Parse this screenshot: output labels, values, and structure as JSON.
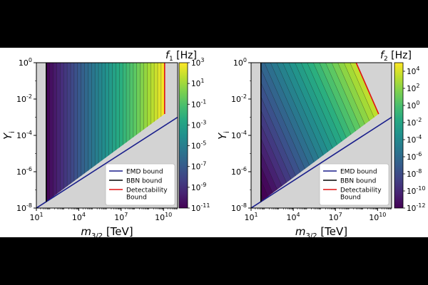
{
  "chart_data": [
    {
      "type": "heatmap",
      "title": "f_1 [Hz]",
      "title_main": "f",
      "title_sub": "1",
      "title_unit": " [Hz]",
      "x_scale": "log",
      "y_scale": "log",
      "xlim": [
        10,
        100000000000.0
      ],
      "ylim": [
        1e-08,
        1
      ],
      "xlabel_main": "m",
      "xlabel_sub": "3/2",
      "xlabel_unit": " [TeV]",
      "ylabel_main": "Y",
      "ylabel_sub": "i",
      "x_ticks": [
        {
          "value": 10,
          "base": "10",
          "exp": "1"
        },
        {
          "value": 10000,
          "base": "10",
          "exp": "4"
        },
        {
          "value": 10000000.0,
          "base": "10",
          "exp": "7"
        },
        {
          "value": 10000000000.0,
          "base": "10",
          "exp": "10"
        }
      ],
      "y_ticks": [
        {
          "value": 1e-08,
          "base": "10",
          "exp": "-8"
        },
        {
          "value": 1e-06,
          "base": "10",
          "exp": "-6"
        },
        {
          "value": 0.0001,
          "base": "10",
          "exp": "-4"
        },
        {
          "value": 0.01,
          "base": "10",
          "exp": "-2"
        },
        {
          "value": 1,
          "base": "10",
          "exp": "0"
        }
      ],
      "colorbar": {
        "scale": "log",
        "range": [
          1e-11,
          1000.0
        ],
        "ticks": [
          {
            "value": 1000.0,
            "base": "10",
            "exp": "3"
          },
          {
            "value": 10,
            "base": "10",
            "exp": "1"
          },
          {
            "value": 0.1,
            "base": "10",
            "exp": "-1"
          },
          {
            "value": 0.001,
            "base": "10",
            "exp": "-3"
          },
          {
            "value": 1e-05,
            "base": "10",
            "exp": "-5"
          },
          {
            "value": 1e-07,
            "base": "10",
            "exp": "-7"
          },
          {
            "value": 1e-09,
            "base": "10",
            "exp": "-9"
          },
          {
            "value": 1e-11,
            "base": "10",
            "exp": "-11"
          }
        ]
      },
      "bounds": {
        "emd_line": [
          [
            10,
            1e-08
          ],
          [
            100000000000.0,
            0.001
          ]
        ],
        "bbn_x": 50,
        "detectability": [
          [
            12000000000.0,
            1
          ],
          [
            12000000000.0,
            0.0015
          ]
        ]
      },
      "color_variation": "x",
      "region_x_start": 50,
      "region_x_end": 12000000000.0,
      "contour_count": 34,
      "legend": {
        "placement": "lower-right",
        "entries": [
          {
            "label": "EMD bound",
            "color": "#1a1f8c"
          },
          {
            "label": "BBN bound",
            "color": "#000000"
          },
          {
            "label": "Detectability\nBound",
            "label_lines": [
              "Detectability",
              "Bound"
            ],
            "color": "#e01010"
          }
        ]
      },
      "colors": {
        "excluded": "#d3d3d3",
        "colormap": "viridis"
      }
    },
    {
      "type": "heatmap",
      "title": "f_2 [Hz]",
      "title_main": "f",
      "title_sub": "2",
      "title_unit": " [Hz]",
      "x_scale": "log",
      "y_scale": "log",
      "xlim": [
        10,
        100000000000.0
      ],
      "ylim": [
        1e-08,
        1
      ],
      "xlabel_main": "m",
      "xlabel_sub": "3/2",
      "xlabel_unit": " [TeV]",
      "ylabel_main": "Y",
      "ylabel_sub": "i",
      "x_ticks": [
        {
          "value": 10,
          "base": "10",
          "exp": "1"
        },
        {
          "value": 10000,
          "base": "10",
          "exp": "4"
        },
        {
          "value": 10000000.0,
          "base": "10",
          "exp": "7"
        },
        {
          "value": 10000000000.0,
          "base": "10",
          "exp": "10"
        }
      ],
      "y_ticks": [
        {
          "value": 1e-08,
          "base": "10",
          "exp": "-8"
        },
        {
          "value": 1e-06,
          "base": "10",
          "exp": "-6"
        },
        {
          "value": 0.0001,
          "base": "10",
          "exp": "-4"
        },
        {
          "value": 0.01,
          "base": "10",
          "exp": "-2"
        },
        {
          "value": 1,
          "base": "10",
          "exp": "0"
        }
      ],
      "colorbar": {
        "scale": "log",
        "range": [
          1e-12,
          100000.0
        ],
        "ticks": [
          {
            "value": 10000.0,
            "base": "10",
            "exp": "4"
          },
          {
            "value": 100,
            "base": "10",
            "exp": "2"
          },
          {
            "value": 1,
            "base": "10",
            "exp": "0"
          },
          {
            "value": 0.01,
            "base": "10",
            "exp": "-2"
          },
          {
            "value": 0.0001,
            "base": "10",
            "exp": "-4"
          },
          {
            "value": 1e-06,
            "base": "10",
            "exp": "-6"
          },
          {
            "value": 1e-08,
            "base": "10",
            "exp": "-8"
          },
          {
            "value": 1e-10,
            "base": "10",
            "exp": "-10"
          },
          {
            "value": 1e-12,
            "base": "10",
            "exp": "-12"
          }
        ]
      },
      "bounds": {
        "emd_line": [
          [
            10,
            1e-08
          ],
          [
            100000000000.0,
            0.001
          ]
        ],
        "bbn_x": 50,
        "detectability": [
          [
            300000000.0,
            1
          ],
          [
            12000000000.0,
            0.0015
          ]
        ]
      },
      "color_variation": "diagonal",
      "region_x_start": 50,
      "region_x_end": 12000000000.0,
      "contour_count": 26,
      "legend": {
        "placement": "lower-right",
        "entries": [
          {
            "label": "EMD bound",
            "color": "#1a1f8c"
          },
          {
            "label": "BBN bound",
            "color": "#000000"
          },
          {
            "label": "Detectability\nBound",
            "label_lines": [
              "Detectability",
              "Bound"
            ],
            "color": "#e01010"
          }
        ]
      },
      "colors": {
        "excluded": "#d3d3d3",
        "colormap": "viridis"
      }
    }
  ]
}
